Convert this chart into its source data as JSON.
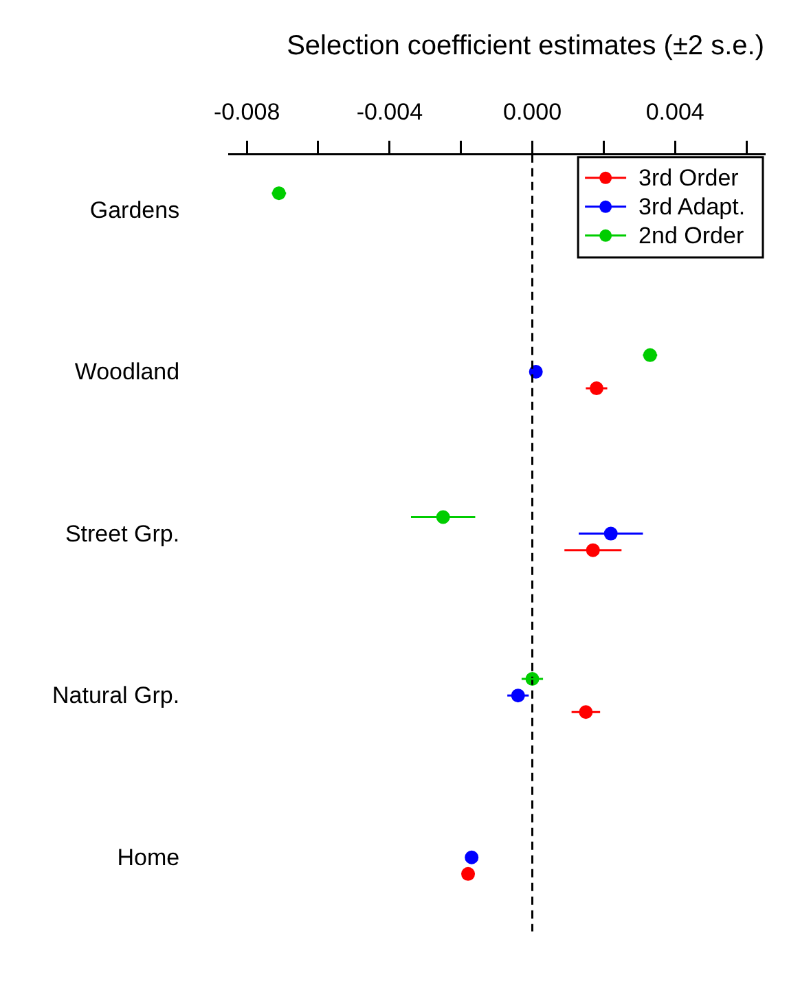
{
  "chart_data": {
    "type": "scatter",
    "orientation": "horizontal",
    "title": "Selection coefficient estimates (±2 s.e.)",
    "categories": [
      "Gardens",
      "Woodland",
      "Street Grp.",
      "Natural Grp.",
      "Home"
    ],
    "series": [
      {
        "name": "3rd Order",
        "color": "#ff0000",
        "values": [
          null,
          0.0018,
          0.0017,
          0.0015,
          -0.0018
        ],
        "errors": [
          null,
          0.0003,
          0.0008,
          0.0004,
          0.0001
        ]
      },
      {
        "name": "3rd Adapt.",
        "color": "#0000ff",
        "values": [
          null,
          0.0001,
          0.0022,
          -0.0004,
          -0.0017
        ],
        "errors": [
          null,
          0.0001,
          0.0009,
          0.0003,
          0.0001
        ]
      },
      {
        "name": "2nd Order",
        "color": "#00cd00",
        "values": [
          -0.0071,
          0.0033,
          -0.0025,
          0.0,
          null
        ],
        "errors": [
          0.0002,
          0.0002,
          0.0009,
          0.0003,
          null
        ]
      }
    ],
    "xlim": [
      -0.0085,
      0.0065
    ],
    "xticks": [
      -0.008,
      {
        "value": -0.006,
        "label": null
      },
      -0.004,
      {
        "value": -0.002,
        "label": null
      },
      {
        "value": 0,
        "label": "0.000"
      },
      {
        "value": 0.002,
        "label": null
      },
      0.004,
      {
        "value": 0.006,
        "label": null
      }
    ],
    "ref_lines": [
      {
        "axis": "x",
        "value": 0,
        "line_style": "dashed",
        "color": "#000000"
      }
    ],
    "grid": false,
    "legend": "top right",
    "marker": "circle"
  }
}
